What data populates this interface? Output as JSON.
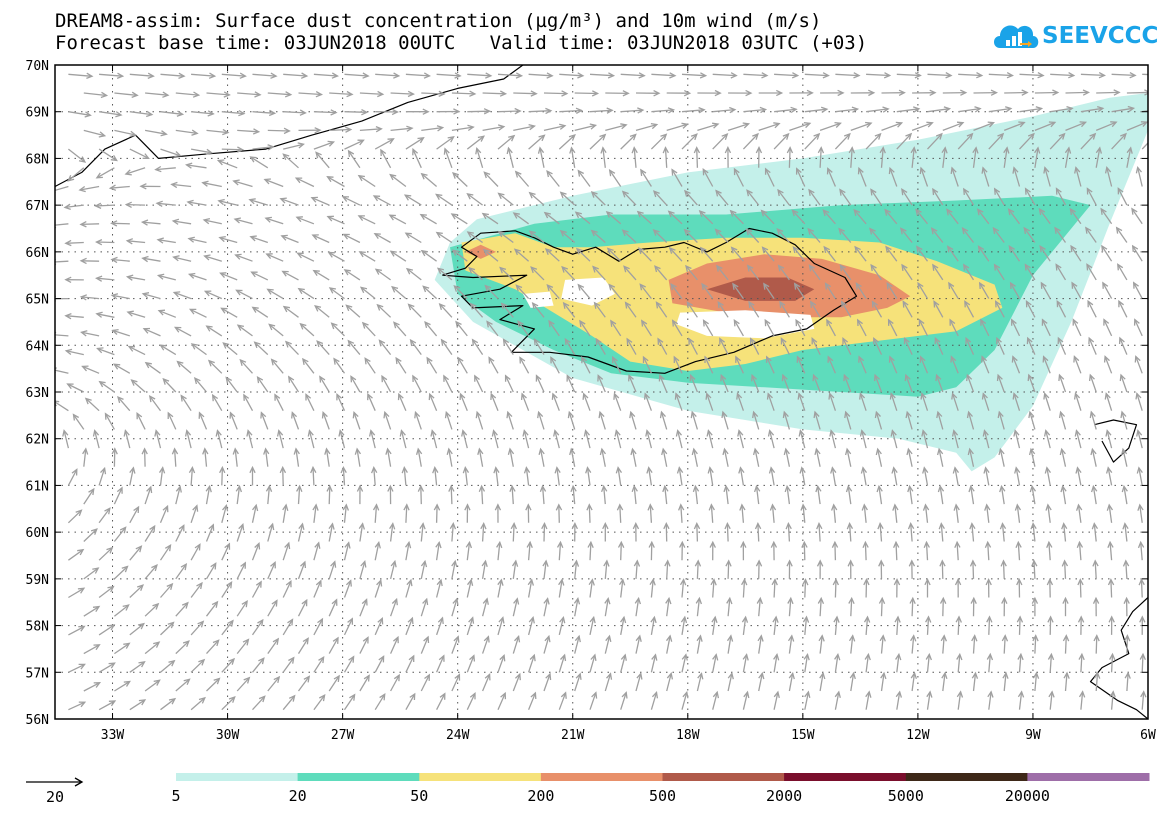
{
  "titles": {
    "line1": "DREAM8-assim: Surface dust concentration (µg/m³) and 10m wind (m/s)",
    "line2": "Forecast base time: 03JUN2018 00UTC   Valid time: 03JUN2018 03UTC (+03)"
  },
  "logo": {
    "text": "SEEVCCC",
    "icon": "cloud-chart-icon",
    "color": "#1aa3e8"
  },
  "wind_reference": {
    "value": "20"
  },
  "chart_data": {
    "type": "map",
    "title": "DREAM8-assim: Surface dust concentration (µg/m³) and 10m wind (m/s)",
    "lon_range": [
      -34.5,
      -6
    ],
    "lat_range": [
      56,
      70
    ],
    "x_ticks": [
      -33,
      -30,
      -27,
      -24,
      -21,
      -18,
      -15,
      -12,
      -9,
      -6
    ],
    "x_tick_labels": [
      "33W",
      "30W",
      "27W",
      "24W",
      "21W",
      "18W",
      "15W",
      "12W",
      "9W",
      "6W"
    ],
    "y_ticks": [
      56,
      57,
      58,
      59,
      60,
      61,
      62,
      63,
      64,
      65,
      66,
      67,
      68,
      69,
      70
    ],
    "y_tick_labels": [
      "56N",
      "57N",
      "58N",
      "59N",
      "60N",
      "61N",
      "62N",
      "63N",
      "64N",
      "65N",
      "66N",
      "67N",
      "68N",
      "69N",
      "70N"
    ],
    "grid": true,
    "colorbar": {
      "levels": [
        "5",
        "20",
        "50",
        "200",
        "500",
        "2000",
        "5000",
        "20000"
      ],
      "colors": [
        "#c4f0ea",
        "#5edcbc",
        "#f6e27a",
        "#e8906a",
        "#b05a4a",
        "#7a0e2c",
        "#3e2818",
        "#9e6ea8"
      ]
    },
    "dust_regions": [
      {
        "level": 0,
        "polygon": [
          [
            -24.2,
            66.2
          ],
          [
            -23.5,
            66.7
          ],
          [
            -21,
            67.2
          ],
          [
            -18,
            67.7
          ],
          [
            -15,
            68
          ],
          [
            -12,
            68.4
          ],
          [
            -9,
            68.9
          ],
          [
            -7,
            69.3
          ],
          [
            -6,
            69.4
          ],
          [
            -6,
            68.6
          ],
          [
            -7,
            66.6
          ],
          [
            -8,
            64.5
          ],
          [
            -9,
            62.7
          ],
          [
            -10,
            61.6
          ],
          [
            -10.6,
            61.3
          ],
          [
            -11,
            61.7
          ],
          [
            -12.5,
            62
          ],
          [
            -15,
            62.2
          ],
          [
            -18,
            62.6
          ],
          [
            -21,
            63.3
          ],
          [
            -23.6,
            64.5
          ],
          [
            -24.6,
            65.4
          ]
        ]
      },
      {
        "level": 1,
        "polygon": [
          [
            -24.2,
            66.1
          ],
          [
            -22,
            66.6
          ],
          [
            -20,
            66.8
          ],
          [
            -17,
            66.8
          ],
          [
            -14,
            67
          ],
          [
            -11,
            67.1
          ],
          [
            -8.5,
            67.2
          ],
          [
            -7.5,
            67
          ],
          [
            -8,
            66.5
          ],
          [
            -9,
            65.5
          ],
          [
            -9.5,
            64.7
          ],
          [
            -10,
            63.9
          ],
          [
            -11,
            63.1
          ],
          [
            -12,
            62.9
          ],
          [
            -14,
            63
          ],
          [
            -16,
            63.1
          ],
          [
            -18,
            63.2
          ],
          [
            -20,
            63.4
          ],
          [
            -21.5,
            63.9
          ],
          [
            -23,
            64.5
          ],
          [
            -24,
            65.1
          ]
        ]
      },
      {
        "level": 2,
        "polygon": [
          [
            -23.9,
            66.2
          ],
          [
            -22.5,
            66.4
          ],
          [
            -21.5,
            66.1
          ],
          [
            -20.5,
            66.1
          ],
          [
            -19,
            66.2
          ],
          [
            -17,
            66.3
          ],
          [
            -15,
            66.3
          ],
          [
            -13,
            66.2
          ],
          [
            -11.5,
            65.8
          ],
          [
            -10,
            65.3
          ],
          [
            -9.8,
            64.8
          ],
          [
            -11,
            64.3
          ],
          [
            -13,
            64.1
          ],
          [
            -15,
            63.9
          ],
          [
            -16.5,
            63.6
          ],
          [
            -18,
            63.45
          ],
          [
            -19.5,
            63.65
          ],
          [
            -20.5,
            64.2
          ],
          [
            -21.5,
            64.7
          ],
          [
            -22.5,
            65.2
          ],
          [
            -23.8,
            65.6
          ]
        ]
      },
      {
        "level": 3,
        "polygon": [
          [
            -18.5,
            65.4
          ],
          [
            -17.5,
            65.75
          ],
          [
            -16,
            65.95
          ],
          [
            -14.5,
            65.85
          ],
          [
            -13,
            65.5
          ],
          [
            -12.2,
            65.05
          ],
          [
            -12.8,
            64.8
          ],
          [
            -14,
            64.6
          ],
          [
            -15.5,
            64.6
          ],
          [
            -17,
            64.7
          ],
          [
            -18.4,
            64.9
          ]
        ]
      },
      {
        "level": 3,
        "polygon": [
          [
            -23.8,
            66.0
          ],
          [
            -23.4,
            66.15
          ],
          [
            -23.0,
            66.0
          ],
          [
            -23.4,
            65.85
          ]
        ]
      },
      {
        "level": 4,
        "polygon": [
          [
            -17.5,
            65.2
          ],
          [
            -16.5,
            65.45
          ],
          [
            -15.4,
            65.45
          ],
          [
            -14.7,
            65.2
          ],
          [
            -15.2,
            64.95
          ],
          [
            -16.5,
            64.95
          ]
        ]
      }
    ],
    "clear_patches": [
      [
        [
          -18.2,
          64.7
        ],
        [
          -16.5,
          64.75
        ],
        [
          -14.8,
          64.65
        ],
        [
          -14.7,
          64.35
        ],
        [
          -16,
          64.15
        ],
        [
          -17.5,
          64.2
        ],
        [
          -18.3,
          64.45
        ]
      ],
      [
        [
          -21.2,
          65.4
        ],
        [
          -20.2,
          65.45
        ],
        [
          -19.9,
          65.1
        ],
        [
          -20.5,
          64.85
        ],
        [
          -21.3,
          65.0
        ]
      ],
      [
        [
          -22.3,
          65.1
        ],
        [
          -21.6,
          65.15
        ],
        [
          -21.5,
          64.85
        ],
        [
          -22.1,
          64.8
        ]
      ]
    ],
    "coastlines": [
      {
        "name": "iceland",
        "points": [
          [
            -24.4,
            65.5
          ],
          [
            -23.8,
            65.65
          ],
          [
            -23.5,
            65.9
          ],
          [
            -23.9,
            66.1
          ],
          [
            -23.4,
            66.4
          ],
          [
            -22.5,
            66.45
          ],
          [
            -22,
            66.3
          ],
          [
            -21.5,
            66.1
          ],
          [
            -21,
            65.95
          ],
          [
            -20.4,
            66.1
          ],
          [
            -19.8,
            65.8
          ],
          [
            -19.3,
            66.05
          ],
          [
            -18.6,
            66.1
          ],
          [
            -18.1,
            66.2
          ],
          [
            -17.5,
            66.0
          ],
          [
            -17,
            66.2
          ],
          [
            -16.4,
            66.5
          ],
          [
            -15.8,
            66.4
          ],
          [
            -15.2,
            66.15
          ],
          [
            -14.7,
            65.75
          ],
          [
            -13.9,
            65.45
          ],
          [
            -13.6,
            65.05
          ],
          [
            -14.2,
            64.75
          ],
          [
            -14.9,
            64.35
          ],
          [
            -15.8,
            64.2
          ],
          [
            -16.8,
            63.85
          ],
          [
            -17.8,
            63.65
          ],
          [
            -18.6,
            63.4
          ],
          [
            -19.6,
            63.45
          ],
          [
            -20.6,
            63.75
          ],
          [
            -21.6,
            63.85
          ],
          [
            -22.6,
            63.85
          ],
          [
            -22.3,
            64.1
          ],
          [
            -22.0,
            64.35
          ],
          [
            -22.9,
            64.55
          ],
          [
            -22.3,
            64.85
          ],
          [
            -23.6,
            64.8
          ],
          [
            -23.9,
            65.05
          ],
          [
            -22.9,
            65.2
          ],
          [
            -22.2,
            65.5
          ],
          [
            -23.6,
            65.45
          ],
          [
            -24.4,
            65.5
          ]
        ]
      },
      {
        "name": "greenland",
        "points": [
          [
            -34.5,
            67.4
          ],
          [
            -33.8,
            67.7
          ],
          [
            -33.2,
            68.2
          ],
          [
            -32.4,
            68.5
          ],
          [
            -31.8,
            68.0
          ],
          [
            -30.5,
            68.1
          ],
          [
            -29.0,
            68.2
          ],
          [
            -27.8,
            68.5
          ],
          [
            -26.5,
            68.8
          ],
          [
            -25.3,
            69.2
          ],
          [
            -24.0,
            69.5
          ],
          [
            -22.8,
            69.7
          ],
          [
            -22.3,
            70.0
          ]
        ]
      },
      {
        "name": "faroe",
        "points": [
          [
            -7.4,
            62.3
          ],
          [
            -6.9,
            62.4
          ],
          [
            -6.3,
            62.3
          ],
          [
            -6.5,
            61.8
          ],
          [
            -6.9,
            61.5
          ],
          [
            -7.2,
            61.95
          ]
        ]
      },
      {
        "name": "scotland",
        "points": [
          [
            -6.0,
            58.6
          ],
          [
            -6.4,
            58.3
          ],
          [
            -6.7,
            57.9
          ],
          [
            -6.5,
            57.4
          ],
          [
            -7.2,
            57.1
          ],
          [
            -7.5,
            56.8
          ],
          [
            -6.8,
            56.4
          ],
          [
            -6.3,
            56.2
          ],
          [
            -6.0,
            56.0
          ]
        ]
      }
    ],
    "wind_grid": {
      "lon_step": 0.8,
      "lat_step": 0.4
    },
    "reference_vector_ms": 20
  }
}
